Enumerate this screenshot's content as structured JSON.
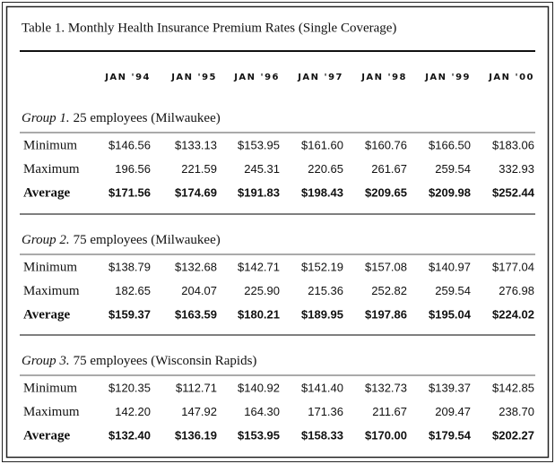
{
  "title": "Table 1. Monthly Health Insurance Premium Rates (Single Coverage)",
  "columns": [
    "JAN '94",
    "JAN '95",
    "JAN '96",
    "JAN '97",
    "JAN '98",
    "JAN '99",
    "JAN '00"
  ],
  "groups": [
    {
      "label": "Group 1.",
      "description": "25 employees (Milwaukee)",
      "rows": [
        {
          "label": "Minimum",
          "values": [
            "$146.56",
            "$133.13",
            "$153.95",
            "$161.60",
            "$160.76",
            "$166.50",
            "$183.06"
          ]
        },
        {
          "label": "Maximum",
          "values": [
            "196.56",
            "221.59",
            "245.31",
            "220.65",
            "261.67",
            "259.54",
            "332.93"
          ]
        },
        {
          "label": "Average",
          "values": [
            "$171.56",
            "$174.69",
            "$191.83",
            "$198.43",
            "$209.65",
            "$209.98",
            "$252.44"
          ]
        }
      ]
    },
    {
      "label": "Group 2.",
      "description": "75 employees (Milwaukee)",
      "rows": [
        {
          "label": "Minimum",
          "values": [
            "$138.79",
            "$132.68",
            "$142.71",
            "$152.19",
            "$157.08",
            "$140.97",
            "$177.04"
          ]
        },
        {
          "label": "Maximum",
          "values": [
            "182.65",
            "204.07",
            "225.90",
            "215.36",
            "252.82",
            "259.54",
            "276.98"
          ]
        },
        {
          "label": "Average",
          "values": [
            "$159.37",
            "$163.59",
            "$180.21",
            "$189.95",
            "$197.86",
            "$195.04",
            "$224.02"
          ]
        }
      ]
    },
    {
      "label": "Group 3.",
      "description": "75 employees (Wisconsin Rapids)",
      "rows": [
        {
          "label": "Minimum",
          "values": [
            "$120.35",
            "$112.71",
            "$140.92",
            "$141.40",
            "$132.73",
            "$139.37",
            "$142.85"
          ]
        },
        {
          "label": "Maximum",
          "values": [
            "142.20",
            "147.92",
            "164.30",
            "171.36",
            "211.67",
            "209.47",
            "238.70"
          ]
        },
        {
          "label": "Average",
          "values": [
            "$132.40",
            "$136.19",
            "$153.95",
            "$158.33",
            "$170.00",
            "$179.54",
            "$202.27"
          ]
        }
      ]
    }
  ]
}
